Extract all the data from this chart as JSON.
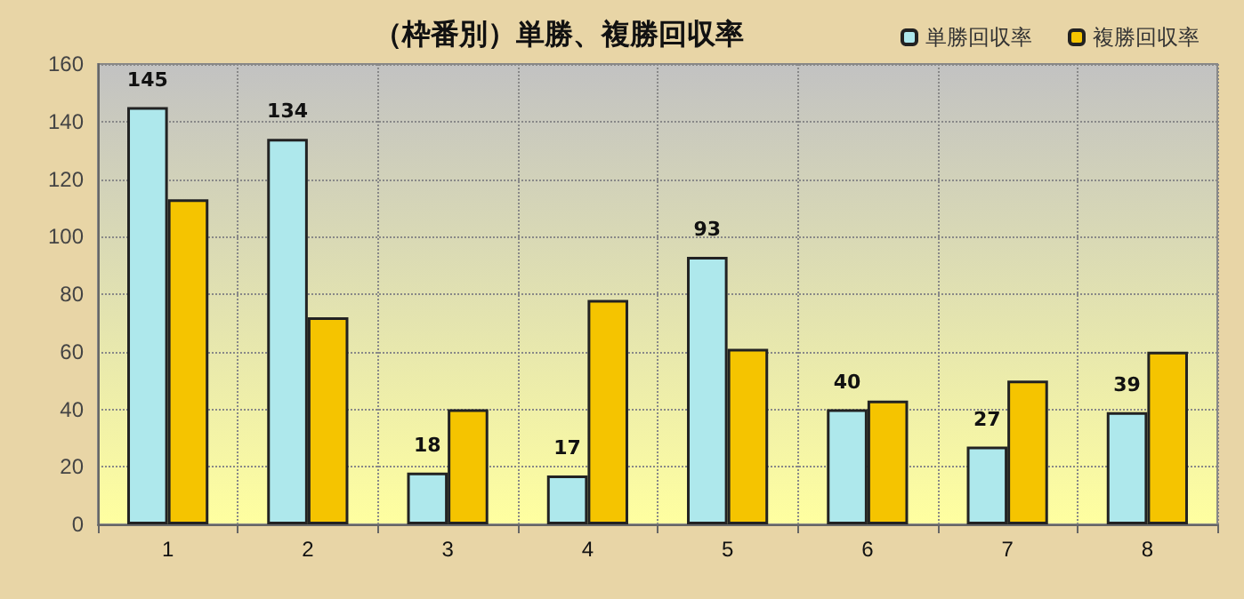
{
  "chart_data": {
    "type": "bar",
    "title": "（枠番別）単勝、複勝回収率",
    "categories": [
      "1",
      "2",
      "3",
      "4",
      "5",
      "6",
      "7",
      "8"
    ],
    "series": [
      {
        "name": "単勝回収率",
        "color": "#aee8ec",
        "values": [
          145,
          134,
          18,
          17,
          93,
          40,
          27,
          39
        ],
        "value_labels": [
          "145",
          "134",
          "18",
          "17",
          "93",
          "40",
          "27",
          "39"
        ]
      },
      {
        "name": "複勝回収率",
        "color": "#f5c400",
        "values": [
          113,
          72,
          40,
          78,
          61,
          43,
          50,
          60
        ]
      }
    ],
    "ylim": [
      0,
      160
    ],
    "yticks": [
      0,
      20,
      40,
      60,
      80,
      100,
      120,
      140,
      160
    ],
    "grid": true,
    "legend": "top right"
  }
}
